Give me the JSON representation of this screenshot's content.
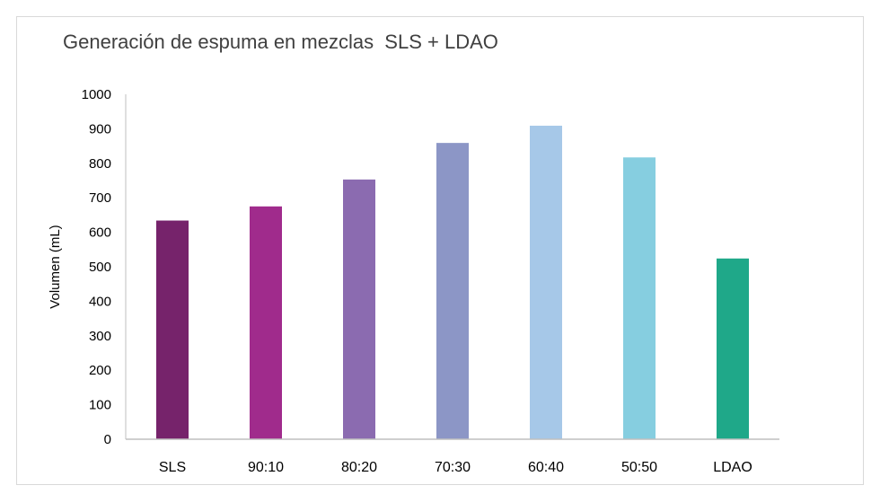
{
  "chart_data": {
    "type": "bar",
    "title": "Generación de espuma en mezclas  SLS + LDAO",
    "xlabel": "",
    "ylabel": "Volumen (mL)",
    "ylim": [
      0,
      1000
    ],
    "yticks": [
      0,
      100,
      200,
      300,
      400,
      500,
      600,
      700,
      800,
      900,
      1000
    ],
    "grid": false,
    "categories": [
      "SLS",
      "90:10",
      "80:20",
      "70:30",
      "60:40",
      "50:50",
      "LDAO"
    ],
    "values": [
      634,
      675,
      753,
      859,
      909,
      817,
      524
    ],
    "colors": [
      "#76236b",
      "#a02b8c",
      "#8b6bb0",
      "#8c96c6",
      "#a6c8e8",
      "#86cee0",
      "#1fa889"
    ]
  }
}
